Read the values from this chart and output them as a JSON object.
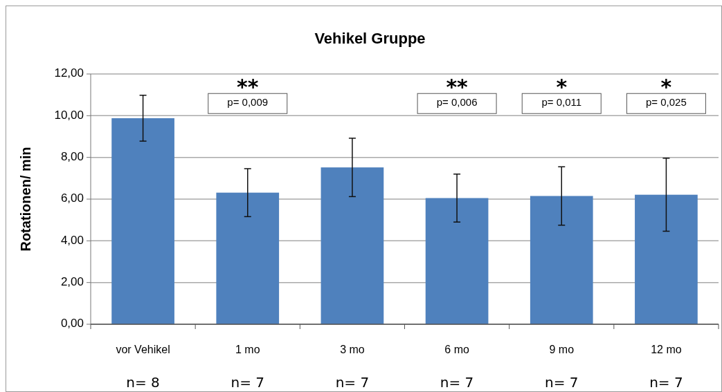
{
  "chart_data": {
    "type": "bar",
    "title": "Vehikel Gruppe",
    "ylabel": "Rotationen/ min",
    "categories": [
      "vor Vehikel",
      "1 mo",
      "3 mo",
      "6 mo",
      "9 mo",
      "12 mo"
    ],
    "values": [
      9.88,
      6.31,
      7.52,
      6.05,
      6.15,
      6.21
    ],
    "errors": [
      1.1,
      1.15,
      1.4,
      1.15,
      1.4,
      1.75
    ],
    "color": "#4f81bd",
    "ylim": [
      0,
      12
    ],
    "yticks": [
      {
        "value": 0,
        "label": "0,00"
      },
      {
        "value": 2,
        "label": "2,00"
      },
      {
        "value": 4,
        "label": "4,00"
      },
      {
        "value": 6,
        "label": "6,00"
      },
      {
        "value": 8,
        "label": "8,00"
      },
      {
        "value": 10,
        "label": "10,00"
      },
      {
        "value": 12,
        "label": "12,00"
      }
    ],
    "grid": "y",
    "annotations": [
      "**",
      "**",
      "*",
      "*",
      "p= 0,009",
      "p= 0,006",
      "p= 0,011",
      "p= 0,025",
      "n= 8",
      "n= 7",
      "n= 7",
      "n= 7",
      "n= 7",
      "n= 7"
    ]
  }
}
